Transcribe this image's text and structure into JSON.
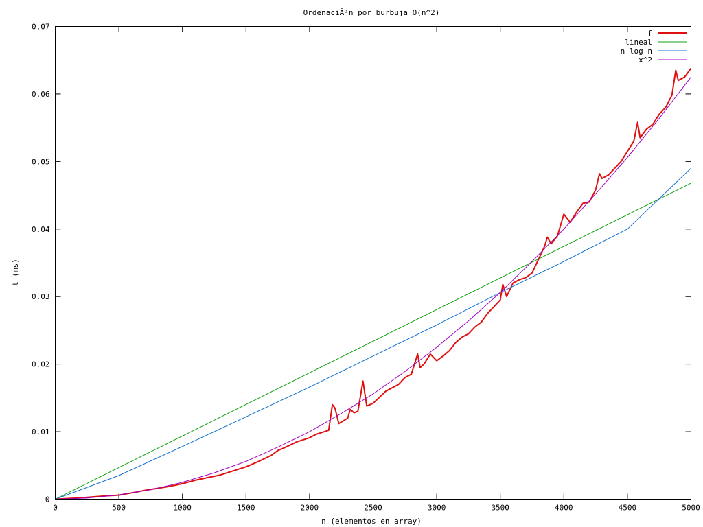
{
  "chart_data": {
    "type": "line",
    "title": "OrdenaciÃ³n por burbuja O(n^2)",
    "xlabel": "n (elementos en array)",
    "ylabel": "t (ms)",
    "xlim": [
      0,
      5000
    ],
    "ylim": [
      0,
      0.07
    ],
    "x_ticks": [
      "0",
      "500",
      "1000",
      "1500",
      "2000",
      "2500",
      "3000",
      "3500",
      "4000",
      "4500",
      "5000"
    ],
    "y_ticks": [
      "0",
      "0.01",
      "0.02",
      "0.03",
      "0.04",
      "0.05",
      "0.06",
      "0.07"
    ],
    "grid": false,
    "legend_position": "top-right",
    "series": [
      {
        "name": "f",
        "color": "#e01010",
        "x": [
          0,
          200,
          400,
          500,
          650,
          700,
          800,
          900,
          1000,
          1100,
          1200,
          1300,
          1400,
          1500,
          1600,
          1700,
          1750,
          1800,
          1900,
          1950,
          2000,
          2050,
          2100,
          2150,
          2180,
          2200,
          2230,
          2300,
          2320,
          2350,
          2380,
          2420,
          2450,
          2500,
          2600,
          2700,
          2750,
          2800,
          2850,
          2870,
          2900,
          2950,
          3000,
          3050,
          3100,
          3150,
          3200,
          3250,
          3300,
          3350,
          3400,
          3450,
          3500,
          3520,
          3550,
          3600,
          3650,
          3700,
          3750,
          3800,
          3850,
          3870,
          3900,
          3950,
          4000,
          4050,
          4100,
          4150,
          4200,
          4250,
          4280,
          4300,
          4350,
          4400,
          4450,
          4500,
          4550,
          4580,
          4600,
          4650,
          4700,
          4750,
          4800,
          4850,
          4880,
          4900,
          4950,
          5000
        ],
        "values": [
          0,
          0.0002,
          0.0005,
          0.0006,
          0.0011,
          0.0013,
          0.0016,
          0.0019,
          0.0023,
          0.0028,
          0.0032,
          0.0036,
          0.0042,
          0.0048,
          0.0056,
          0.0065,
          0.0072,
          0.0076,
          0.0085,
          0.0088,
          0.0091,
          0.0096,
          0.0099,
          0.0102,
          0.014,
          0.0135,
          0.0112,
          0.012,
          0.0133,
          0.0128,
          0.013,
          0.0175,
          0.0138,
          0.0142,
          0.016,
          0.017,
          0.018,
          0.0185,
          0.0215,
          0.0195,
          0.02,
          0.0215,
          0.0205,
          0.0212,
          0.022,
          0.0232,
          0.024,
          0.0245,
          0.0255,
          0.0262,
          0.0275,
          0.0285,
          0.0295,
          0.0318,
          0.03,
          0.032,
          0.0325,
          0.0328,
          0.0335,
          0.0355,
          0.0375,
          0.0388,
          0.0378,
          0.039,
          0.0422,
          0.041,
          0.0425,
          0.0438,
          0.044,
          0.0458,
          0.0482,
          0.0475,
          0.048,
          0.049,
          0.05,
          0.0515,
          0.053,
          0.0558,
          0.0535,
          0.0548,
          0.0555,
          0.057,
          0.058,
          0.0598,
          0.0635,
          0.062,
          0.0625,
          0.0638
        ]
      },
      {
        "name": "lineal",
        "color": "#10a010",
        "x": [
          0,
          5000
        ],
        "values": [
          0,
          0.0468
        ]
      },
      {
        "name": "n log n",
        "color": "#1070d0",
        "x": [
          0,
          500,
          1000,
          1500,
          2000,
          2500,
          3000,
          3500,
          4000,
          4500,
          5000
        ],
        "values": [
          0,
          0.0035,
          0.0078,
          0.0122,
          0.0166,
          0.0212,
          0.0258,
          0.0306,
          0.0352,
          0.04,
          0.049
        ]
      },
      {
        "name": "x^2",
        "color": "#a000c0",
        "x": [
          0,
          250,
          500,
          750,
          1000,
          1250,
          1500,
          1750,
          2000,
          2250,
          2500,
          2750,
          3000,
          3250,
          3500,
          3750,
          4000,
          4250,
          4500,
          4750,
          5000
        ],
        "values": [
          0,
          0.00016,
          0.000625,
          0.0014,
          0.0025,
          0.0039,
          0.0056,
          0.0077,
          0.01,
          0.0127,
          0.0156,
          0.0189,
          0.0225,
          0.0264,
          0.0306,
          0.0352,
          0.04,
          0.0452,
          0.0506,
          0.0564,
          0.0625
        ]
      }
    ]
  }
}
